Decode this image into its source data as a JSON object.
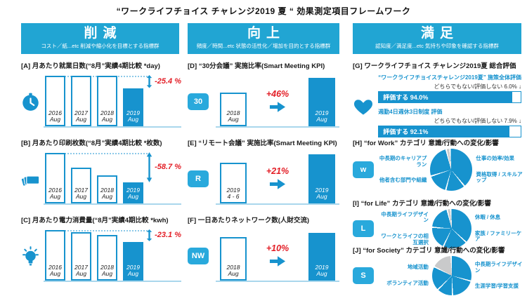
{
  "page": {
    "title": "“ワークライフチョイス チャレンジ2019 夏 “ 効果測定項目フレームワーク"
  },
  "colors": {
    "accent": "#1793CE",
    "header_bg": "#21A5D3",
    "icon_bg": "#29A9DC",
    "baseline": "#A9D7EC",
    "negative_red": "#E31E26",
    "pie_gray": "#C9CACB"
  },
  "columns": {
    "reduction": {
      "header": "削減",
      "subheader": "コスト／紙...etc 削減や縮小化を目標とする指標群"
    },
    "improvement": {
      "header": "向上",
      "subheader": "頻度／時間...etc 状態の活性化／増加を目的とする指標群"
    },
    "satisfaction": {
      "header": "満足",
      "subheader": "認知度／満足度...etc 気持ちや印象を確認する指標群"
    }
  },
  "chart_data": [
    {
      "id": "A",
      "type": "bar",
      "title": "[A] 月あたり就業日数(“8月”実績4期比較 *day)",
      "delta_label": "-25.4 %",
      "delta_pct": -25.4,
      "ylim": [
        0,
        100
      ],
      "bars": [
        {
          "label": "2016 Aug",
          "line1": "2016",
          "line2": "Aug",
          "h": 100,
          "filled": false
        },
        {
          "label": "2017 Aug",
          "line1": "2017",
          "line2": "Aug",
          "h": 100,
          "filled": false
        },
        {
          "label": "2018 Aug",
          "line1": "2018",
          "line2": "Aug",
          "h": 100,
          "filled": false
        },
        {
          "label": "2019 Aug",
          "line1": "2019",
          "line2": "Aug",
          "h": 74.6,
          "filled": true
        }
      ]
    },
    {
      "id": "B",
      "type": "bar",
      "title": "[B] 月あたり印刷枚数(“8月”実績4期比較 *枚数)",
      "delta_label": "-58.7 %",
      "delta_pct": -58.7,
      "ylim": [
        0,
        100
      ],
      "bars": [
        {
          "label": "2016 Aug",
          "line1": "2016",
          "line2": "Aug",
          "h": 100,
          "filled": false
        },
        {
          "label": "2017 Aug",
          "line1": "2017",
          "line2": "Aug",
          "h": 71,
          "filled": false
        },
        {
          "label": "2018 Aug",
          "line1": "2018",
          "line2": "Aug",
          "h": 55,
          "filled": false
        },
        {
          "label": "2019 Aug",
          "line1": "2019",
          "line2": "Aug",
          "h": 41.3,
          "filled": true
        }
      ]
    },
    {
      "id": "C",
      "type": "bar",
      "title": "[C] 月あたり電力消費量(“8月”実績4期比較 *kwh)",
      "delta_label": "-23.1 %",
      "delta_pct": -23.1,
      "ylim": [
        0,
        100
      ],
      "bars": [
        {
          "label": "2016 Aug",
          "line1": "2016",
          "line2": "Aug",
          "h": 100,
          "filled": false
        },
        {
          "label": "2017 Aug",
          "line1": "2017",
          "line2": "Aug",
          "h": 96,
          "filled": false
        },
        {
          "label": "2018 Aug",
          "line1": "2018",
          "line2": "Aug",
          "h": 90,
          "filled": false
        },
        {
          "label": "2019 Aug",
          "line1": "2019",
          "line2": "Aug",
          "h": 76.9,
          "filled": true
        }
      ]
    },
    {
      "id": "D",
      "type": "bar",
      "icon": "30",
      "title": "[D] “30分会議” 実施比率(Smart Meeting KPI)",
      "delta_label": "+46%",
      "delta_pct": 46,
      "bars": [
        {
          "label": "2018 Aug",
          "line1": "2018",
          "line2": "Aug",
          "h": 66,
          "filled": false
        },
        {
          "label": "2019 Aug",
          "line1": "2019",
          "line2": "Aug",
          "h": 96,
          "filled": true
        }
      ]
    },
    {
      "id": "E",
      "type": "bar",
      "icon": "R",
      "title": "[E] “リモート会議” 実施比率(Smart Meeting KPI)",
      "delta_label": "+21%",
      "delta_pct": 21,
      "bars": [
        {
          "label": "2019 4-6",
          "line1": "2019",
          "line2": "4 - 6",
          "h": 80,
          "filled": false
        },
        {
          "label": "2019 Aug",
          "line1": "2019",
          "line2": "Aug",
          "h": 97,
          "filled": true
        }
      ]
    },
    {
      "id": "F",
      "type": "bar",
      "icon": "NW",
      "title": "[F] 一日あたりネットワーク数(人財交流)",
      "delta_label": "+10%",
      "delta_pct": 10,
      "bars": [
        {
          "label": "2018 Aug",
          "line1": "2018",
          "line2": "Aug",
          "h": 86,
          "filled": false
        },
        {
          "label": "2019 Aug",
          "line1": "2019",
          "line2": "Aug",
          "h": 95,
          "filled": true
        }
      ]
    },
    {
      "id": "G",
      "type": "hbar",
      "title": "[G] ワークライフチョイス チャレンジ2019夏 総合評価",
      "groups": [
        {
          "heading": "“ワークライフチョイスチャレンジ2019夏” 施策全体評価",
          "other_label": "どちらでもない/評価しない 6.0% ↓",
          "other_pct": 6.0,
          "bar_label": "評価する 94.0%",
          "pct": 94.0
        },
        {
          "heading": "週勤4日週休3日制度 評価",
          "other_label": "どちらでもない/評価しない 7.9% ↓",
          "other_pct": 7.9,
          "bar_label": "評価する 92.1%",
          "pct": 92.1
        }
      ]
    },
    {
      "id": "H",
      "type": "pie",
      "icon": "w",
      "start_deg": -12,
      "title": "[H] “for Work” カテゴリ 意識/行動への変化/影響",
      "slices": [
        {
          "label": "",
          "value": 3,
          "color": "#C9CACB"
        },
        {
          "label": "仕事の効率/効果",
          "value": 40,
          "color": "#1793CE"
        },
        {
          "label": "資格取得 / スキルアップ",
          "value": 15,
          "color": "#1793CE"
        },
        {
          "label": "他者含む部門や組織",
          "value": 16,
          "color": "#1793CE"
        },
        {
          "label": "中長期のキャリアプラン",
          "value": 26,
          "color": "#1793CE"
        }
      ]
    },
    {
      "id": "I",
      "type": "pie",
      "icon": "L",
      "start_deg": -12,
      "title": "[I] “for Life” カテゴリ 意識/行動への変化/影響",
      "slices": [
        {
          "label": "",
          "value": 3,
          "color": "#C9CACB"
        },
        {
          "label": "休暇 / 休息",
          "value": 38,
          "color": "#1793CE"
        },
        {
          "label": "家族 / ファミリーケア",
          "value": 20,
          "color": "#1793CE"
        },
        {
          "label": "ワークとライフの相互選択",
          "value": 19,
          "color": "#1793CE"
        },
        {
          "label": "中長期ライフデザイン",
          "value": 20,
          "color": "#1793CE"
        }
      ]
    },
    {
      "id": "J",
      "type": "pie",
      "icon": "S",
      "start_deg": 0,
      "title": "[J] “for Society” カテゴリ 意識/行動への変化/影響",
      "slices": [
        {
          "label": "中長期ライフデザイン",
          "value": 30,
          "color": "#1793CE"
        },
        {
          "label": "生涯学習/学習支援",
          "value": 20,
          "color": "#1793CE"
        },
        {
          "label": "ボランティア活動",
          "value": 13,
          "color": "#1793CE"
        },
        {
          "label": "地域活動",
          "value": 20,
          "color": "#1793CE"
        },
        {
          "label": "",
          "value": 17,
          "color": "#C9CACB"
        }
      ]
    }
  ]
}
